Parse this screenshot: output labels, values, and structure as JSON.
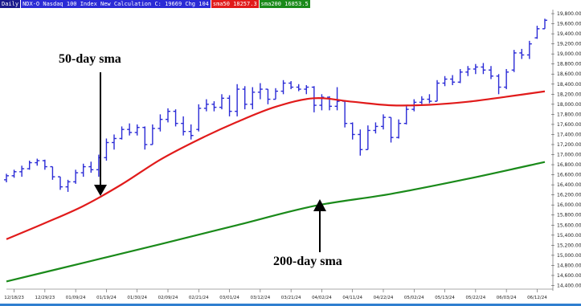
{
  "legend": {
    "timeframe": "Daily",
    "main": "NDX-O  Nasdaq 100 Index New Calculation  C: 19669  Chg 104",
    "sma50": "sma50  18257.3",
    "sma200": "sma200  16853.5"
  },
  "annotations": {
    "sma50_label": "50-day sma",
    "sma200_label": "200-day sma"
  },
  "chart_data": {
    "type": "line",
    "x_ticks": [
      "12/18/23",
      "12/29/23",
      "01/09/24",
      "01/19/24",
      "01/30/24",
      "02/09/24",
      "02/21/24",
      "03/01/24",
      "03/12/24",
      "03/21/24",
      "04/02/24",
      "04/11/24",
      "04/22/24",
      "05/02/24",
      "05/13/24",
      "05/22/24",
      "06/03/24",
      "06/12/24"
    ],
    "y_ticks": [
      14400,
      14600,
      14800,
      15000,
      15200,
      15400,
      15600,
      15800,
      16000,
      16200,
      16400,
      16600,
      16800,
      17000,
      17200,
      17400,
      17600,
      17800,
      18000,
      18200,
      18400,
      18600,
      18800,
      19000,
      19200,
      19400,
      19600,
      19800
    ],
    "ylim": [
      14360,
      19880
    ],
    "price_bars": [
      {
        "x": 0,
        "lo": 16450,
        "hi": 16620,
        "o": 16500,
        "c": 16580
      },
      {
        "x": 2,
        "lo": 16540,
        "hi": 16700,
        "o": 16580,
        "c": 16660
      },
      {
        "x": 4,
        "lo": 16560,
        "hi": 16780,
        "o": 16660,
        "c": 16720
      },
      {
        "x": 6,
        "lo": 16700,
        "hi": 16880,
        "o": 16720,
        "c": 16840
      },
      {
        "x": 8,
        "lo": 16780,
        "hi": 16920,
        "o": 16840,
        "c": 16880
      },
      {
        "x": 10,
        "lo": 16700,
        "hi": 16900,
        "o": 16880,
        "c": 16760
      },
      {
        "x": 12,
        "lo": 16500,
        "hi": 16760,
        "o": 16760,
        "c": 16560
      },
      {
        "x": 14,
        "lo": 16300,
        "hi": 16560,
        "o": 16560,
        "c": 16360
      },
      {
        "x": 16,
        "lo": 16260,
        "hi": 16500,
        "o": 16360,
        "c": 16460
      },
      {
        "x": 18,
        "lo": 16420,
        "hi": 16700,
        "o": 16460,
        "c": 16640
      },
      {
        "x": 20,
        "lo": 16560,
        "hi": 16820,
        "o": 16640,
        "c": 16760
      },
      {
        "x": 22,
        "lo": 16640,
        "hi": 16860,
        "o": 16760,
        "c": 16700
      },
      {
        "x": 24,
        "lo": 16560,
        "hi": 17000,
        "o": 16700,
        "c": 16940
      },
      {
        "x": 26,
        "lo": 16880,
        "hi": 17320,
        "o": 16940,
        "c": 17240
      },
      {
        "x": 28,
        "lo": 17100,
        "hi": 17400,
        "o": 17240,
        "c": 17320
      },
      {
        "x": 30,
        "lo": 17300,
        "hi": 17560,
        "o": 17320,
        "c": 17500
      },
      {
        "x": 32,
        "lo": 17380,
        "hi": 17620,
        "o": 17500,
        "c": 17440
      },
      {
        "x": 34,
        "lo": 17380,
        "hi": 17600,
        "o": 17440,
        "c": 17540
      },
      {
        "x": 36,
        "lo": 17100,
        "hi": 17560,
        "o": 17540,
        "c": 17200
      },
      {
        "x": 38,
        "lo": 17200,
        "hi": 17600,
        "o": 17200,
        "c": 17520
      },
      {
        "x": 40,
        "lo": 17460,
        "hi": 17800,
        "o": 17520,
        "c": 17700
      },
      {
        "x": 42,
        "lo": 17640,
        "hi": 17920,
        "o": 17700,
        "c": 17860
      },
      {
        "x": 44,
        "lo": 17560,
        "hi": 17900,
        "o": 17860,
        "c": 17620
      },
      {
        "x": 46,
        "lo": 17380,
        "hi": 17760,
        "o": 17620,
        "c": 17460
      },
      {
        "x": 48,
        "lo": 17300,
        "hi": 17600,
        "o": 17460,
        "c": 17380
      },
      {
        "x": 50,
        "lo": 17460,
        "hi": 18000,
        "o": 17500,
        "c": 17920
      },
      {
        "x": 52,
        "lo": 17860,
        "hi": 18100,
        "o": 17920,
        "c": 18000
      },
      {
        "x": 54,
        "lo": 17860,
        "hi": 18060,
        "o": 18000,
        "c": 17940
      },
      {
        "x": 56,
        "lo": 17900,
        "hi": 18200,
        "o": 17940,
        "c": 18120
      },
      {
        "x": 58,
        "lo": 17760,
        "hi": 18180,
        "o": 18120,
        "c": 17860
      },
      {
        "x": 60,
        "lo": 17760,
        "hi": 18400,
        "o": 17860,
        "c": 18300
      },
      {
        "x": 62,
        "lo": 17900,
        "hi": 18360,
        "o": 18300,
        "c": 18000
      },
      {
        "x": 64,
        "lo": 17900,
        "hi": 18340,
        "o": 18000,
        "c": 18240
      },
      {
        "x": 66,
        "lo": 18100,
        "hi": 18420,
        "o": 18240,
        "c": 18300
      },
      {
        "x": 68,
        "lo": 18000,
        "hi": 18300,
        "o": 18300,
        "c": 18100
      },
      {
        "x": 70,
        "lo": 18100,
        "hi": 18320,
        "o": 18100,
        "c": 18260
      },
      {
        "x": 72,
        "lo": 18200,
        "hi": 18480,
        "o": 18260,
        "c": 18420
      },
      {
        "x": 74,
        "lo": 18300,
        "hi": 18460,
        "o": 18420,
        "c": 18340
      },
      {
        "x": 76,
        "lo": 18260,
        "hi": 18400,
        "o": 18340,
        "c": 18300
      },
      {
        "x": 78,
        "lo": 18200,
        "hi": 18380,
        "o": 18300,
        "c": 18340
      },
      {
        "x": 80,
        "lo": 17840,
        "hi": 18360,
        "o": 18340,
        "c": 17980
      },
      {
        "x": 82,
        "lo": 17880,
        "hi": 18200,
        "o": 17980,
        "c": 18140
      },
      {
        "x": 84,
        "lo": 17880,
        "hi": 18160,
        "o": 18140,
        "c": 17960
      },
      {
        "x": 86,
        "lo": 17880,
        "hi": 18340,
        "o": 17960,
        "c": 18060
      },
      {
        "x": 88,
        "lo": 17540,
        "hi": 18080,
        "o": 18060,
        "c": 17620
      },
      {
        "x": 90,
        "lo": 17300,
        "hi": 17640,
        "o": 17620,
        "c": 17400
      },
      {
        "x": 92,
        "lo": 16980,
        "hi": 17500,
        "o": 17400,
        "c": 17100
      },
      {
        "x": 94,
        "lo": 17100,
        "hi": 17580,
        "o": 17100,
        "c": 17480
      },
      {
        "x": 96,
        "lo": 17420,
        "hi": 17640,
        "o": 17480,
        "c": 17560
      },
      {
        "x": 98,
        "lo": 17500,
        "hi": 17800,
        "o": 17560,
        "c": 17740
      },
      {
        "x": 100,
        "lo": 17240,
        "hi": 17740,
        "o": 17740,
        "c": 17340
      },
      {
        "x": 102,
        "lo": 17320,
        "hi": 17700,
        "o": 17340,
        "c": 17620
      },
      {
        "x": 104,
        "lo": 17600,
        "hi": 17960,
        "o": 17620,
        "c": 17900
      },
      {
        "x": 106,
        "lo": 17860,
        "hi": 18100,
        "o": 17900,
        "c": 18040
      },
      {
        "x": 108,
        "lo": 18000,
        "hi": 18160,
        "o": 18040,
        "c": 18100
      },
      {
        "x": 110,
        "lo": 18020,
        "hi": 18200,
        "o": 18100,
        "c": 18060
      },
      {
        "x": 112,
        "lo": 18060,
        "hi": 18480,
        "o": 18060,
        "c": 18420
      },
      {
        "x": 114,
        "lo": 18360,
        "hi": 18560,
        "o": 18420,
        "c": 18500
      },
      {
        "x": 116,
        "lo": 18380,
        "hi": 18580,
        "o": 18500,
        "c": 18440
      },
      {
        "x": 118,
        "lo": 18420,
        "hi": 18700,
        "o": 18440,
        "c": 18640
      },
      {
        "x": 120,
        "lo": 18560,
        "hi": 18760,
        "o": 18640,
        "c": 18700
      },
      {
        "x": 122,
        "lo": 18600,
        "hi": 18800,
        "o": 18700,
        "c": 18740
      },
      {
        "x": 124,
        "lo": 18600,
        "hi": 18820,
        "o": 18740,
        "c": 18680
      },
      {
        "x": 126,
        "lo": 18500,
        "hi": 18760,
        "o": 18680,
        "c": 18560
      },
      {
        "x": 128,
        "lo": 18200,
        "hi": 18600,
        "o": 18560,
        "c": 18340
      },
      {
        "x": 130,
        "lo": 18300,
        "hi": 18700,
        "o": 18340,
        "c": 18640
      },
      {
        "x": 132,
        "lo": 18640,
        "hi": 19080,
        "o": 18680,
        "c": 19020
      },
      {
        "x": 134,
        "lo": 18900,
        "hi": 19100,
        "o": 19020,
        "c": 18980
      },
      {
        "x": 136,
        "lo": 18900,
        "hi": 19260,
        "o": 18980,
        "c": 19200
      },
      {
        "x": 138,
        "lo": 19300,
        "hi": 19560,
        "o": 19320,
        "c": 19500
      },
      {
        "x": 140,
        "lo": 19500,
        "hi": 19700,
        "o": 19500,
        "c": 19669
      }
    ],
    "series": [
      {
        "name": "sma50",
        "color": "#e11b1b",
        "x": [
          0,
          10,
          20,
          30,
          40,
          50,
          60,
          70,
          80,
          90,
          100,
          110,
          120,
          130,
          140
        ],
        "values": [
          15320,
          15640,
          15980,
          16410,
          16900,
          17300,
          17650,
          17950,
          18120,
          18050,
          17980,
          17990,
          18050,
          18150,
          18257
        ]
      },
      {
        "name": "sma200",
        "color": "#1a8a1a",
        "x": [
          0,
          20,
          40,
          60,
          80,
          100,
          120,
          140
        ],
        "values": [
          14480,
          14850,
          15220,
          15600,
          15980,
          16220,
          16520,
          16854
        ]
      }
    ],
    "price_color": "#2b2bd6",
    "grid": false
  }
}
